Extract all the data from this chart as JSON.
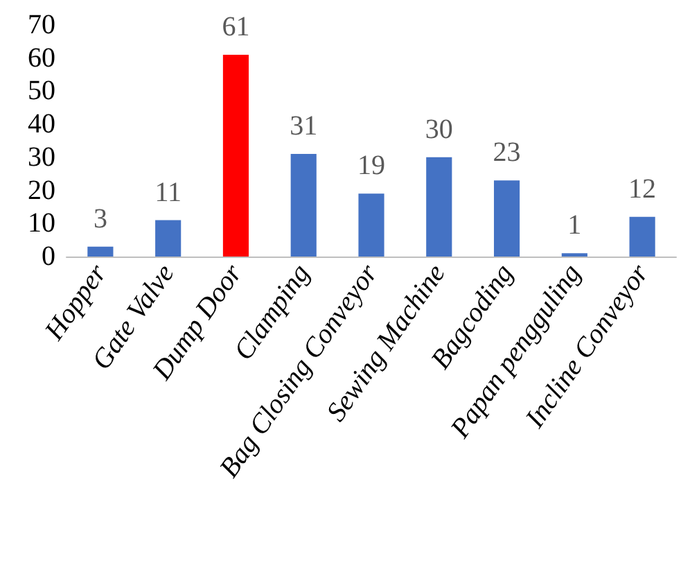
{
  "chart_data": {
    "type": "bar",
    "categories": [
      "Hopper",
      "Gate Valve",
      "Dump Door",
      "Clamping",
      "Bag Closing Conveyor",
      "Sewing Machine",
      "Bagcoding",
      "Papan pengguling",
      "Incline Conveyor"
    ],
    "values": [
      3,
      11,
      61,
      31,
      19,
      30,
      23,
      1,
      12
    ],
    "colors": [
      "#4472c4",
      "#4472c4",
      "#ff0000",
      "#4472c4",
      "#4472c4",
      "#4472c4",
      "#4472c4",
      "#4472c4",
      "#4472c4"
    ],
    "ylim": [
      0,
      70
    ],
    "yticks": [
      0,
      10,
      20,
      30,
      40,
      50,
      60,
      70
    ],
    "grid": false,
    "data_labels": true
  }
}
